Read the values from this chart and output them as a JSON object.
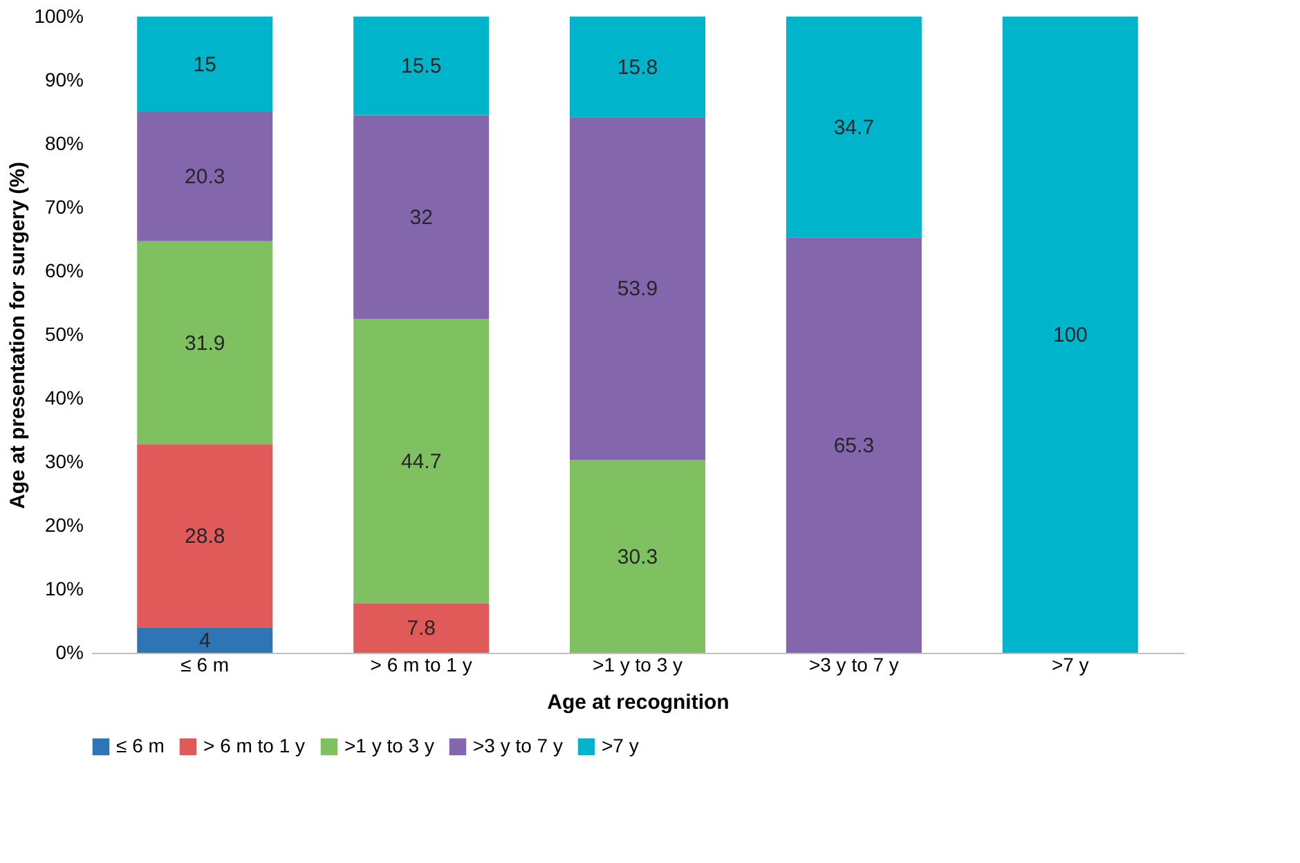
{
  "chart_data": {
    "type": "bar",
    "stacked": true,
    "xlabel": "Age at recognition",
    "ylabel": "Age at presentation for surgery (%)",
    "categories": [
      "≤ 6 m",
      "> 6 m to 1 y",
      ">1 y to 3 y",
      ">3 y to 7 y",
      ">7 y"
    ],
    "series": [
      {
        "name": "≤ 6 m",
        "color": "#2e75b6",
        "values": [
          4,
          null,
          null,
          null,
          null
        ]
      },
      {
        "name": "> 6 m to 1 y",
        "color": "#e05a5a",
        "values": [
          28.8,
          7.8,
          null,
          null,
          null
        ]
      },
      {
        "name": ">1 y to 3 y",
        "color": "#7fc060",
        "values": [
          31.9,
          44.7,
          30.3,
          null,
          null
        ]
      },
      {
        "name": ">3 y to 7 y",
        "color": "#8466ac",
        "values": [
          20.3,
          32,
          53.9,
          65.3,
          null
        ]
      },
      {
        "name": ">7 y",
        "color": "#00b4cc",
        "values": [
          15,
          15.5,
          15.8,
          34.7,
          100
        ]
      }
    ],
    "ylim": [
      0,
      100
    ],
    "yticks": [
      {
        "value": 0,
        "label": "0%"
      },
      {
        "value": 10,
        "label": "10%"
      },
      {
        "value": 20,
        "label": "20%"
      },
      {
        "value": 30,
        "label": "30%"
      },
      {
        "value": 40,
        "label": "40%"
      },
      {
        "value": 50,
        "label": "50%"
      },
      {
        "value": 60,
        "label": "60%"
      },
      {
        "value": 70,
        "label": "70%"
      },
      {
        "value": 80,
        "label": "80%"
      },
      {
        "value": 90,
        "label": "90%"
      },
      {
        "value": 100,
        "label": "100%"
      }
    ],
    "grid": false,
    "legend": "bottom",
    "data_labels": true
  }
}
